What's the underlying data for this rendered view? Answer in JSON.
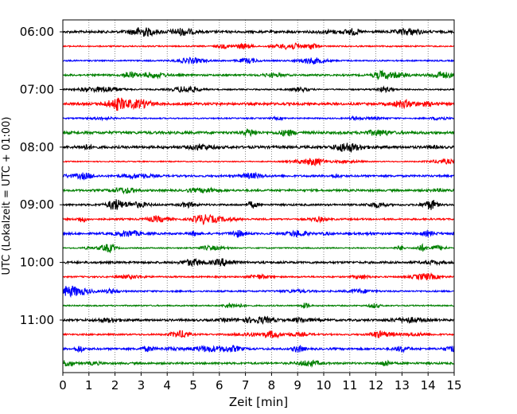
{
  "chart_data": {
    "type": "line",
    "title": "",
    "xlabel": "Zeit  [min]",
    "ylabel": "UTC (Lokalzeit = UTC + 01:00)",
    "xlim": [
      0,
      15
    ],
    "x_ticks": [
      0,
      1,
      2,
      3,
      4,
      5,
      6,
      7,
      8,
      9,
      10,
      11,
      12,
      13,
      14,
      15
    ],
    "x_tick_labels": [
      "0",
      "1",
      "2",
      "3",
      "4",
      "5",
      "6",
      "7",
      "8",
      "9",
      "10",
      "11",
      "12",
      "13",
      "14",
      "15"
    ],
    "y_tick_labels": [
      "06:00",
      "07:00",
      "08:00",
      "09:00",
      "10:00",
      "11:00"
    ],
    "grid": "vertical dotted",
    "trace_interval_min": 15,
    "trace_start": "06:00",
    "color_cycle": [
      "#000000",
      "#ff0000",
      "#0000ff",
      "#008000"
    ],
    "traces": [
      {
        "start": "06:00",
        "color": "#000000"
      },
      {
        "start": "06:15",
        "color": "#ff0000"
      },
      {
        "start": "06:30",
        "color": "#0000ff"
      },
      {
        "start": "06:45",
        "color": "#008000"
      },
      {
        "start": "07:00",
        "color": "#000000"
      },
      {
        "start": "07:15",
        "color": "#ff0000"
      },
      {
        "start": "07:30",
        "color": "#0000ff"
      },
      {
        "start": "07:45",
        "color": "#008000"
      },
      {
        "start": "08:00",
        "color": "#000000"
      },
      {
        "start": "08:15",
        "color": "#ff0000"
      },
      {
        "start": "08:30",
        "color": "#0000ff"
      },
      {
        "start": "08:45",
        "color": "#008000"
      },
      {
        "start": "09:00",
        "color": "#000000"
      },
      {
        "start": "09:15",
        "color": "#ff0000"
      },
      {
        "start": "09:30",
        "color": "#0000ff"
      },
      {
        "start": "09:45",
        "color": "#008000"
      },
      {
        "start": "10:00",
        "color": "#000000"
      },
      {
        "start": "10:15",
        "color": "#ff0000"
      },
      {
        "start": "10:30",
        "color": "#0000ff"
      },
      {
        "start": "10:45",
        "color": "#008000"
      },
      {
        "start": "11:00",
        "color": "#000000"
      },
      {
        "start": "11:15",
        "color": "#ff0000"
      },
      {
        "start": "11:30",
        "color": "#0000ff"
      },
      {
        "start": "11:45",
        "color": "#008000"
      }
    ]
  }
}
